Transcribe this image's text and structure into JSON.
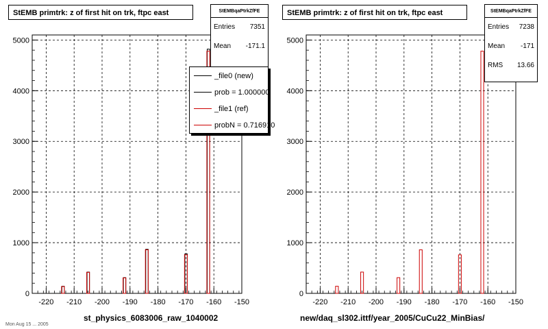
{
  "panels": [
    {
      "title": "StEMB primtrk: z of first hit on trk, ftpc east",
      "stats": {
        "name": "StEMBqaPtrkZfFE",
        "rows": [
          {
            "label": "Entries",
            "value": "7351"
          },
          {
            "label": "Mean",
            "value": "-171.1"
          }
        ]
      },
      "legend": [
        {
          "label": "_file0 (new)",
          "color": "#000000"
        },
        {
          "label": "prob = 1.000000",
          "color": "#000000"
        },
        {
          "label": "_file1 (ref)",
          "color": "#cc0000"
        },
        {
          "label": "probN = 0.716910",
          "color": "#cc0000"
        }
      ],
      "xlabel": "st_physics_6083006_raw_1040002"
    },
    {
      "title": "StEMB primtrk: z of first hit on trk, ftpc east",
      "stats": {
        "name": "StEMBqaPtrkZfFE",
        "rows": [
          {
            "label": "Entries",
            "value": "7238"
          },
          {
            "label": "Mean",
            "value": "-171"
          },
          {
            "label": "RMS",
            "value": "13.66"
          }
        ]
      },
      "legend": [],
      "xlabel": "new/daq_sl302.ittf/year_2005/CuCu22_MinBias/"
    }
  ],
  "footer_text": "Mon Aug 15 ... 2005",
  "colors": {
    "new": "#000000",
    "ref": "#cc0000",
    "grid": "#000000"
  },
  "chart_data": [
    {
      "type": "bar",
      "title": "StEMB primtrk: z of first hit on trk, ftpc east",
      "xlabel": "st_physics_6083006_raw_1040002",
      "ylabel": "",
      "xlim": [
        -225,
        -150
      ],
      "ylim": [
        0,
        5100
      ],
      "x_ticks": [
        -220,
        -210,
        -200,
        -190,
        -180,
        -170,
        -160,
        -150
      ],
      "y_ticks": [
        0,
        1000,
        2000,
        3000,
        4000,
        5000
      ],
      "grid": true,
      "bin_width": 1,
      "series": [
        {
          "name": "_file0 (new)",
          "color": "#000000",
          "x": [
            -214,
            -205,
            -192,
            -184,
            -170,
            -162
          ],
          "values": [
            140,
            420,
            310,
            870,
            780,
            4820
          ]
        },
        {
          "name": "_file1 (ref)",
          "color": "#cc0000",
          "x": [
            -214,
            -205,
            -192,
            -184,
            -170,
            -162
          ],
          "values": [
            135,
            415,
            305,
            860,
            760,
            4780
          ]
        }
      ]
    },
    {
      "type": "bar",
      "title": "StEMB primtrk: z of first hit on trk, ftpc east",
      "xlabel": "new/daq_sl302.ittf/year_2005/CuCu22_MinBias/",
      "ylabel": "",
      "xlim": [
        -225,
        -150
      ],
      "ylim": [
        0,
        5100
      ],
      "x_ticks": [
        -220,
        -210,
        -200,
        -190,
        -180,
        -170,
        -160,
        -150
      ],
      "y_ticks": [
        0,
        1000,
        2000,
        3000,
        4000,
        5000
      ],
      "grid": true,
      "bin_width": 1,
      "series": [
        {
          "name": "_file1 (ref)",
          "color": "#cc0000",
          "x": [
            -214,
            -205,
            -192,
            -184,
            -170,
            -162
          ],
          "values": [
            140,
            420,
            310,
            860,
            760,
            4780
          ]
        }
      ]
    }
  ]
}
